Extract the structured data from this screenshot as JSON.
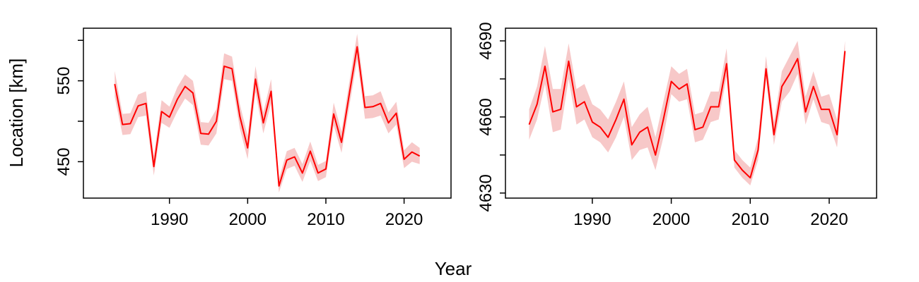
{
  "figure": {
    "shared_ylabel": "Location [km]",
    "shared_xlabel": "Year",
    "line_color": "#ff0000",
    "band_color": "#f7c8c8"
  },
  "chart_data": [
    {
      "type": "line",
      "xlim": [
        1979,
        2026
      ],
      "ylim": [
        405,
        615
      ],
      "xticks": [
        1990,
        2000,
        2010,
        2020
      ],
      "yticks": [
        450,
        500,
        550,
        600
      ],
      "ytick_labels": [
        "450",
        "",
        "550",
        ""
      ],
      "x": [
        1983,
        1984,
        1985,
        1986,
        1987,
        1988,
        1989,
        1990,
        1991,
        1992,
        1993,
        1994,
        1995,
        1996,
        1997,
        1998,
        1999,
        2000,
        2001,
        2002,
        2003,
        2004,
        2005,
        2006,
        2007,
        2008,
        2009,
        2010,
        2011,
        2012,
        2013,
        2014,
        2015,
        2016,
        2017,
        2018,
        2019,
        2020,
        2021,
        2022
      ],
      "series": [
        {
          "y": [
            546,
            496,
            497,
            519,
            522,
            444,
            512,
            505,
            527,
            543,
            535,
            485,
            484,
            500,
            568,
            565,
            506,
            467,
            552,
            498,
            537,
            420,
            452,
            456,
            436,
            463,
            436,
            441,
            509,
            474,
            534,
            592,
            517,
            518,
            522,
            498,
            510,
            453,
            462,
            457
          ],
          "lower": [
            530,
            483,
            484,
            505,
            507,
            433,
            498,
            492,
            512,
            528,
            520,
            471,
            470,
            485,
            552,
            550,
            491,
            453,
            536,
            485,
            522,
            412,
            441,
            445,
            425,
            451,
            426,
            431,
            495,
            461,
            519,
            576,
            503,
            504,
            507,
            485,
            496,
            442,
            450,
            447
          ],
          "upper": [
            562,
            509,
            510,
            533,
            537,
            457,
            526,
            518,
            542,
            558,
            550,
            499,
            498,
            515,
            584,
            580,
            521,
            482,
            568,
            511,
            552,
            429,
            463,
            467,
            447,
            475,
            446,
            451,
            523,
            487,
            549,
            608,
            531,
            532,
            537,
            511,
            524,
            464,
            474,
            467
          ]
        }
      ]
    },
    {
      "type": "line",
      "xlim": [
        1979,
        2026
      ],
      "ylim": [
        4628,
        4695
      ],
      "xticks": [
        1990,
        2000,
        2010,
        2020
      ],
      "yticks": [
        4630,
        4645,
        4660,
        4675,
        4690
      ],
      "ytick_labels": [
        "4630",
        "",
        "4660",
        "",
        "4690"
      ],
      "x": [
        1982,
        1983,
        1984,
        1985,
        1986,
        1987,
        1988,
        1989,
        1990,
        1991,
        1992,
        1993,
        1994,
        1995,
        1996,
        1997,
        1998,
        1999,
        2000,
        2001,
        2002,
        2003,
        2004,
        2005,
        2006,
        2007,
        2008,
        2009,
        2010,
        2011,
        2012,
        2013,
        2014,
        2015,
        2016,
        2017,
        2018,
        2019,
        2020,
        2021,
        2022
      ],
      "series": [
        {
          "y": [
            4657,
            4665,
            4680,
            4662,
            4663,
            4682,
            4664,
            4666,
            4658,
            4656,
            4652,
            4659,
            4667,
            4649,
            4654,
            4656,
            4645,
            4659,
            4674,
            4671,
            4673,
            4655,
            4656,
            4664,
            4664,
            4681,
            4643,
            4639,
            4636,
            4647,
            4679,
            4653,
            4672,
            4677,
            4683,
            4662,
            4672,
            4663,
            4663,
            4653,
            4686
          ],
          "lower": [
            4651,
            4659,
            4673,
            4654,
            4655,
            4675,
            4657,
            4659,
            4652,
            4650,
            4646,
            4652,
            4660,
            4643,
            4647,
            4648,
            4639,
            4652,
            4669,
            4666,
            4667,
            4650,
            4651,
            4658,
            4659,
            4676,
            4640,
            4636,
            4633,
            4643,
            4675,
            4649,
            4666,
            4670,
            4677,
            4657,
            4667,
            4658,
            4657,
            4648,
            4682
          ],
          "upper": [
            4663,
            4672,
            4688,
            4671,
            4671,
            4689,
            4671,
            4673,
            4665,
            4663,
            4659,
            4666,
            4674,
            4656,
            4661,
            4664,
            4652,
            4666,
            4680,
            4677,
            4679,
            4661,
            4662,
            4670,
            4670,
            4687,
            4647,
            4643,
            4640,
            4652,
            4684,
            4658,
            4678,
            4684,
            4690,
            4668,
            4678,
            4668,
            4669,
            4659,
            4690
          ]
        }
      ]
    }
  ]
}
